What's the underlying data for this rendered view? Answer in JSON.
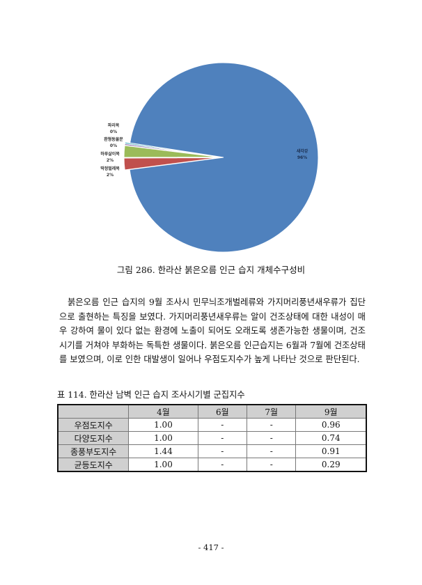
{
  "chart_data": {
    "type": "pie",
    "slices": [
      {
        "label": "파리목",
        "value": 0.25,
        "display": "0%",
        "color": "#4bacc6"
      },
      {
        "label": "환형동물문",
        "value": 0.25,
        "display": "0%",
        "color": "#8064a2"
      },
      {
        "label": "하루살이목",
        "value": 2,
        "display": "2%",
        "color": "#9bbb59"
      },
      {
        "label": "딱정벌레목",
        "value": 2,
        "display": "2%",
        "color": "#c0504d"
      },
      {
        "label": "새각강",
        "value": 95.5,
        "display": "96%",
        "color": "#4f81bd"
      }
    ]
  },
  "figure_caption": "그림 286. 한라산 붉은오름 인근 습지 개체수구성비",
  "paragraph": "붉은오름 인근 습지의 9월 조사시 민무늬조개벌레류와 가지머리풍년새우류가 집단으로 출현하는 특징을 보였다. 가지머리풍년새우류는 알이 건조상태에 대한 내성이 매우 강하여 물이 있다 없는 환경에 노출이 되어도 오래도록 생존가능한 생물이며, 건조시기를 거쳐야 부화하는 독특한 생물이다. 붉은오름 인근습지는 6월과 7월에 건조상태를 보였으며, 이로 인한 대발생이 일어나 우점도지수가 높게 나타난 것으로 판단된다.",
  "table_caption": "표 114. 한라산 남벽 인근 습지 조사시기별 군집지수",
  "table": {
    "headers": [
      "",
      "4월",
      "6월",
      "7월",
      "9월"
    ],
    "rows": [
      [
        "우점도지수",
        "1.00",
        "-",
        "-",
        "0.96"
      ],
      [
        "다양도지수",
        "1.00",
        "-",
        "-",
        "0.74"
      ],
      [
        "종풍부도지수",
        "1.44",
        "-",
        "-",
        "0.91"
      ],
      [
        "균등도지수",
        "1.00",
        "-",
        "-",
        "0.29"
      ]
    ]
  },
  "page_number": "- 417 -"
}
